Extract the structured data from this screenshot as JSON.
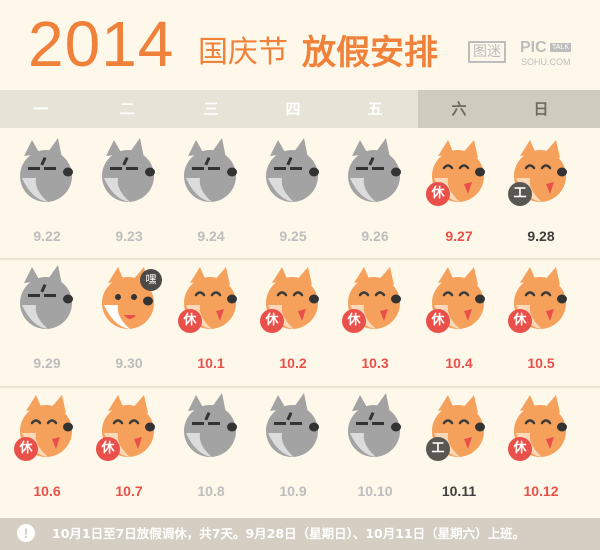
{
  "header": {
    "year": "2014",
    "title_light": "国庆节",
    "title_bold": "放假安排",
    "logo_cn": "图迷",
    "logo_pic": "PIC",
    "logo_talk": "TALK",
    "logo_site": "SOHU.COM"
  },
  "weekdays": [
    "一",
    "二",
    "三",
    "四",
    "五",
    "六",
    "日"
  ],
  "colors": {
    "fox": "#f5a15c",
    "wolf": "#a3a3a3",
    "rest": "#e9504a",
    "work": "#585752",
    "title": "#f0813a"
  },
  "days": [
    {
      "date": "9.22",
      "animal": "wolf-icon",
      "style": "grey"
    },
    {
      "date": "9.23",
      "animal": "wolf-icon",
      "style": "grey"
    },
    {
      "date": "9.24",
      "animal": "wolf-icon",
      "style": "grey"
    },
    {
      "date": "9.25",
      "animal": "wolf-icon",
      "style": "grey"
    },
    {
      "date": "9.26",
      "animal": "wolf-icon",
      "style": "grey"
    },
    {
      "date": "9.27",
      "animal": "fox-icon",
      "style": "red",
      "badge": "休"
    },
    {
      "date": "9.28",
      "animal": "fox-icon",
      "style": "dark",
      "badge": "工"
    },
    {
      "date": "9.29",
      "animal": "wolf-icon",
      "style": "grey"
    },
    {
      "date": "9.30",
      "animal": "fox-icon",
      "style": "grey",
      "bubble": "嘿"
    },
    {
      "date": "10.1",
      "animal": "fox-icon",
      "style": "red",
      "badge": "休"
    },
    {
      "date": "10.2",
      "animal": "fox-icon",
      "style": "red",
      "badge": "休"
    },
    {
      "date": "10.3",
      "animal": "fox-icon",
      "style": "red",
      "badge": "休"
    },
    {
      "date": "10.4",
      "animal": "fox-icon",
      "style": "red",
      "badge": "休"
    },
    {
      "date": "10.5",
      "animal": "fox-icon",
      "style": "red",
      "badge": "休"
    },
    {
      "date": "10.6",
      "animal": "fox-icon",
      "style": "red",
      "badge": "休"
    },
    {
      "date": "10.7",
      "animal": "fox-icon",
      "style": "red",
      "badge": "休"
    },
    {
      "date": "10.8",
      "animal": "wolf-icon",
      "style": "grey"
    },
    {
      "date": "10.9",
      "animal": "wolf-icon",
      "style": "grey"
    },
    {
      "date": "10.10",
      "animal": "wolf-icon",
      "style": "grey"
    },
    {
      "date": "10.11",
      "animal": "fox-icon",
      "style": "dark",
      "badge": "工"
    },
    {
      "date": "10.12",
      "animal": "fox-icon",
      "style": "red",
      "badge": "休"
    }
  ],
  "footer": {
    "icon": "exclamation-icon",
    "bang": "!",
    "note": "10月1日至7日放假调休，共7天。9月28日（星期日）、10月11日（星期六）上班。"
  }
}
